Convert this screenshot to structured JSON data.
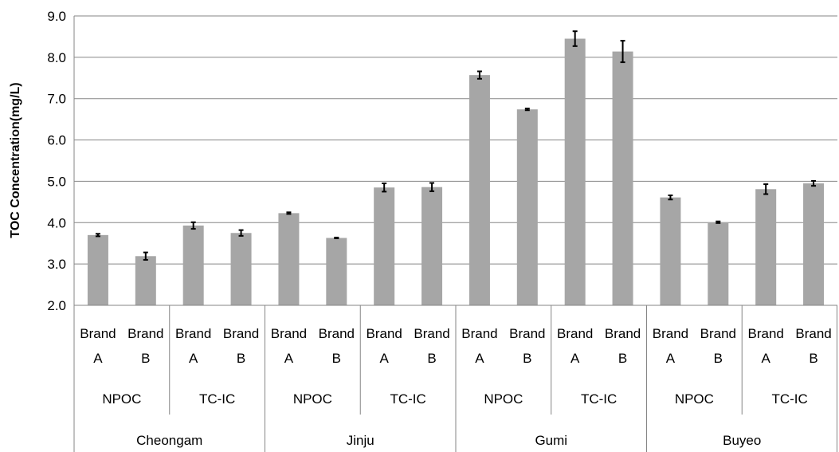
{
  "chart_data": {
    "type": "bar",
    "title": "",
    "ylabel": "TOC Concentration(mg/L)",
    "xlabel": "",
    "ylim": [
      2.0,
      9.0
    ],
    "ytick_step": 1.0,
    "yticks": [
      "2.0",
      "3.0",
      "4.0",
      "5.0",
      "6.0",
      "7.0",
      "8.0",
      "9.0"
    ],
    "grid": true,
    "legend": "none",
    "bar_color": "#a6a6a6",
    "sites": [
      "Cheongam",
      "Jinju",
      "Gumi",
      "Buyeo"
    ],
    "methods": [
      "NPOC",
      "TC-IC"
    ],
    "brands": [
      {
        "line1": "Brand",
        "line2": "A"
      },
      {
        "line1": "Brand",
        "line2": "B"
      }
    ],
    "bars": [
      {
        "site": "Cheongam",
        "method": "NPOC",
        "brand": "A",
        "value": 3.7,
        "error": 0.03
      },
      {
        "site": "Cheongam",
        "method": "NPOC",
        "brand": "B",
        "value": 3.19,
        "error": 0.09
      },
      {
        "site": "Cheongam",
        "method": "TC-IC",
        "brand": "A",
        "value": 3.93,
        "error": 0.08
      },
      {
        "site": "Cheongam",
        "method": "TC-IC",
        "brand": "B",
        "value": 3.75,
        "error": 0.07
      },
      {
        "site": "Jinju",
        "method": "NPOC",
        "brand": "A",
        "value": 4.23,
        "error": 0.02
      },
      {
        "site": "Jinju",
        "method": "NPOC",
        "brand": "B",
        "value": 3.63,
        "error": 0.01
      },
      {
        "site": "Jinju",
        "method": "TC-IC",
        "brand": "A",
        "value": 4.85,
        "error": 0.1
      },
      {
        "site": "Jinju",
        "method": "TC-IC",
        "brand": "B",
        "value": 4.86,
        "error": 0.1
      },
      {
        "site": "Gumi",
        "method": "NPOC",
        "brand": "A",
        "value": 7.57,
        "error": 0.09
      },
      {
        "site": "Gumi",
        "method": "NPOC",
        "brand": "B",
        "value": 6.74,
        "error": 0.02
      },
      {
        "site": "Gumi",
        "method": "TC-IC",
        "brand": "A",
        "value": 8.45,
        "error": 0.18
      },
      {
        "site": "Gumi",
        "method": "TC-IC",
        "brand": "B",
        "value": 8.14,
        "error": 0.26
      },
      {
        "site": "Buyeo",
        "method": "NPOC",
        "brand": "A",
        "value": 4.61,
        "error": 0.05
      },
      {
        "site": "Buyeo",
        "method": "NPOC",
        "brand": "B",
        "value": 4.01,
        "error": 0.02
      },
      {
        "site": "Buyeo",
        "method": "TC-IC",
        "brand": "A",
        "value": 4.81,
        "error": 0.12
      },
      {
        "site": "Buyeo",
        "method": "TC-IC",
        "brand": "B",
        "value": 4.95,
        "error": 0.06
      }
    ]
  }
}
